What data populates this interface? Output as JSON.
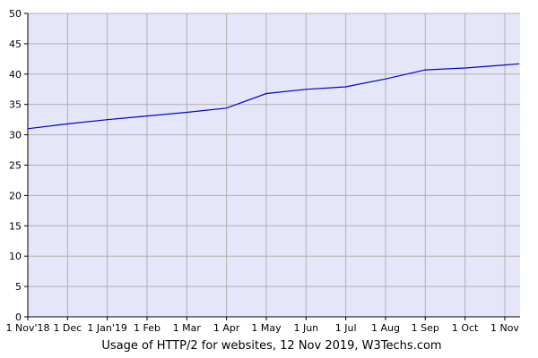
{
  "chart_data": {
    "type": "line",
    "title": "",
    "xlabel": "",
    "ylabel": "",
    "caption": "Usage of HTTP/2 for websites, 12 Nov 2019, W3Techs.com",
    "ylim": [
      0,
      50
    ],
    "y_ticks": [
      "0",
      "5",
      "10",
      "15",
      "20",
      "25",
      "30",
      "35",
      "40",
      "45",
      "50"
    ],
    "x_ticks": [
      "1 Nov'18",
      "1 Dec",
      "1 Jan'19",
      "1 Feb",
      "1 Mar",
      "1 Apr",
      "1 May",
      "1 Jun",
      "1 Jul",
      "1 Aug",
      "1 Sep",
      "1 Oct",
      "1 Nov"
    ],
    "grid": true,
    "colors": {
      "plot_background": "#e6e6fa",
      "line": "#0000cc",
      "grid": "#b0b0b0"
    },
    "series": [
      {
        "x": [
          "1 Nov'18",
          "1 Dec",
          "1 Jan'19",
          "1 Feb",
          "1 Mar",
          "1 Apr",
          "1 May",
          "1 Jun",
          "1 Jul",
          "1 Aug",
          "1 Sep",
          "1 Oct",
          "1 Nov",
          "12 Nov"
        ],
        "values": [
          31.0,
          31.8,
          32.5,
          33.1,
          33.7,
          34.4,
          36.8,
          37.5,
          37.9,
          39.2,
          40.7,
          41.0,
          41.5,
          41.7
        ]
      }
    ]
  }
}
